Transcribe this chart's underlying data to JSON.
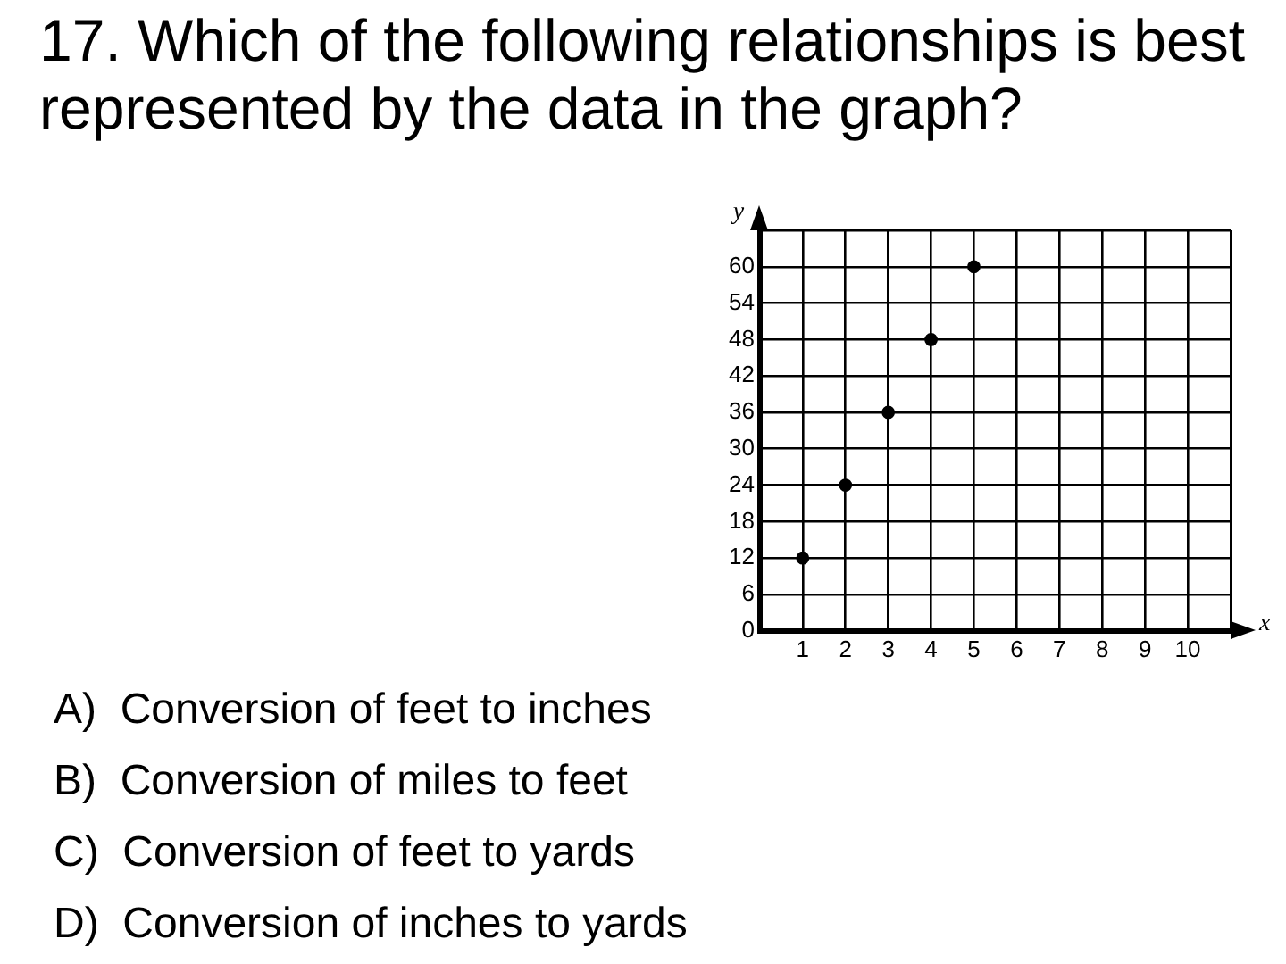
{
  "chart_data": {
    "type": "scatter",
    "title": "17. Which of the following relationships is best represented by the data in the graph?",
    "xlabel": "x",
    "ylabel": "y",
    "x": [
      1,
      2,
      3,
      4,
      5
    ],
    "series": [
      {
        "color": "#000000",
        "values": [
          12,
          24,
          36,
          48,
          60
        ]
      }
    ],
    "xlim": [
      0,
      11
    ],
    "xticks": [
      1,
      2,
      3,
      4,
      5,
      6,
      7,
      8,
      9,
      10,
      {
        "value": 11,
        "label": null
      }
    ],
    "ylim": [
      0,
      66
    ],
    "yticks": [
      0,
      6,
      12,
      18,
      24,
      30,
      36,
      42,
      48,
      54,
      60,
      {
        "value": 66,
        "label": null
      }
    ],
    "grid": true,
    "marker": "circle",
    "annotations": [
      "A)  Conversion of feet to inches",
      "B)  Conversion of miles to feet",
      "C)  Conversion of feet to yards",
      "D)  Conversion of inches to yards"
    ]
  }
}
